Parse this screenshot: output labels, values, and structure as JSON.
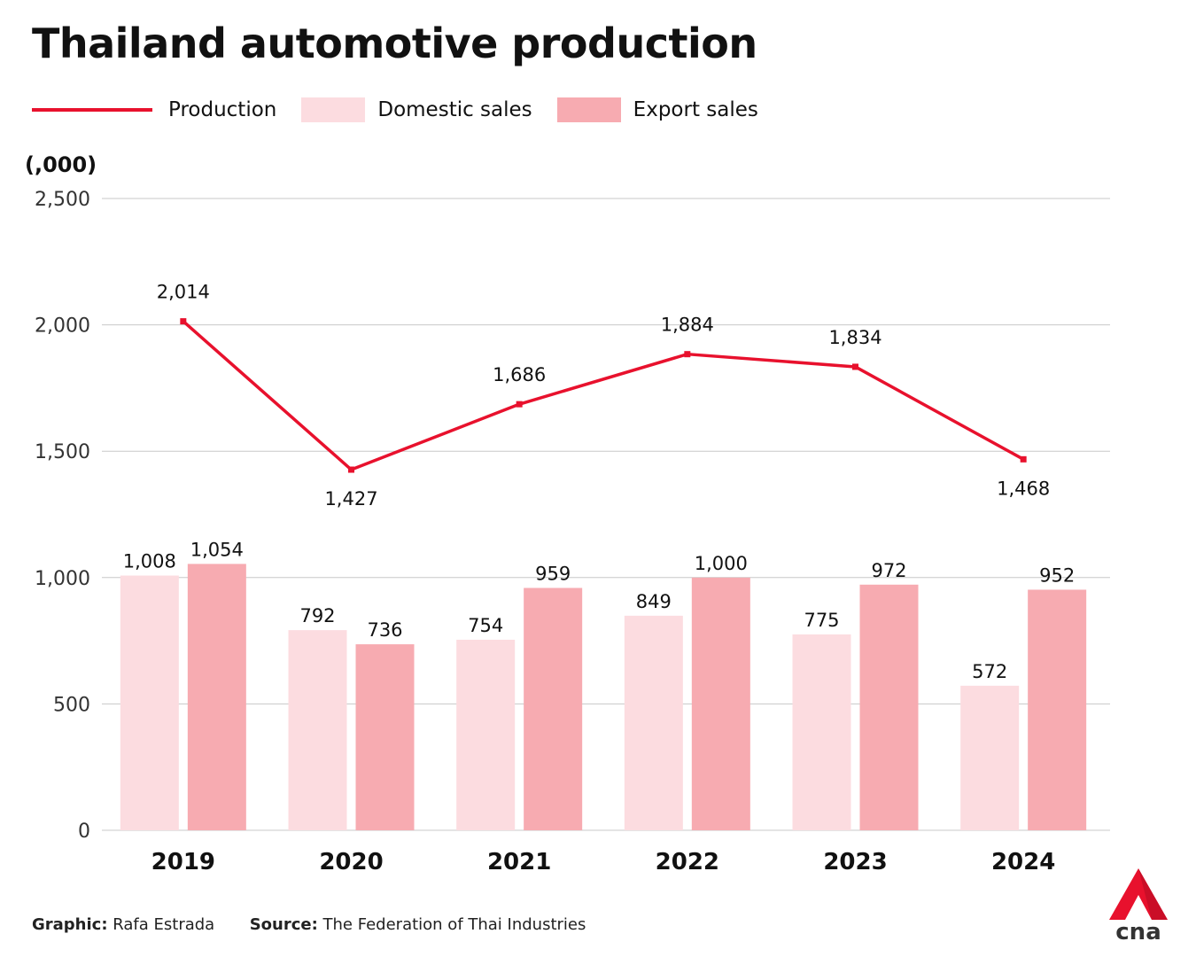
{
  "title": "Thailand automotive production",
  "legend": {
    "production": "Production",
    "domestic": "Domestic sales",
    "export": "Export sales"
  },
  "colors": {
    "production": "#e8112d",
    "domestic": "#fcdce0",
    "export": "#f7abb1",
    "gridline": "#c8c8c8",
    "brand": "#e8112d"
  },
  "chart_data": {
    "type": "bar",
    "ylabel": "(,000)",
    "ylim": [
      0,
      2500
    ],
    "yticks": [
      0,
      500,
      1000,
      1500,
      2000,
      2500
    ],
    "ytick_labels": [
      "0",
      "500",
      "1,000",
      "1,500",
      "2,000",
      "2,500"
    ],
    "categories": [
      "2019",
      "2020",
      "2021",
      "2022",
      "2023",
      "2024"
    ],
    "grid": true,
    "legend_position": "top-left",
    "series": [
      {
        "name": "Domestic sales",
        "type": "bar",
        "values": [
          1008,
          792,
          754,
          849,
          775,
          572
        ],
        "labels": [
          "1,008",
          "792",
          "754",
          "849",
          "775",
          "572"
        ]
      },
      {
        "name": "Export sales",
        "type": "bar",
        "values": [
          1054,
          736,
          959,
          1000,
          972,
          952
        ],
        "labels": [
          "1,054",
          "736",
          "959",
          "1,000",
          "972",
          "952"
        ]
      },
      {
        "name": "Production",
        "type": "line",
        "values": [
          2014,
          1427,
          1686,
          1884,
          1834,
          1468
        ],
        "labels": [
          "2,014",
          "1,427",
          "1,686",
          "1,884",
          "1,834",
          "1,468"
        ]
      }
    ]
  },
  "footer": {
    "graphic_label": "Graphic:",
    "graphic_value": "Rafa Estrada",
    "source_label": "Source:",
    "source_value": "The Federation of Thai Industries"
  },
  "logo": {
    "text": "cna",
    "icon": "cna-logo-icon"
  }
}
